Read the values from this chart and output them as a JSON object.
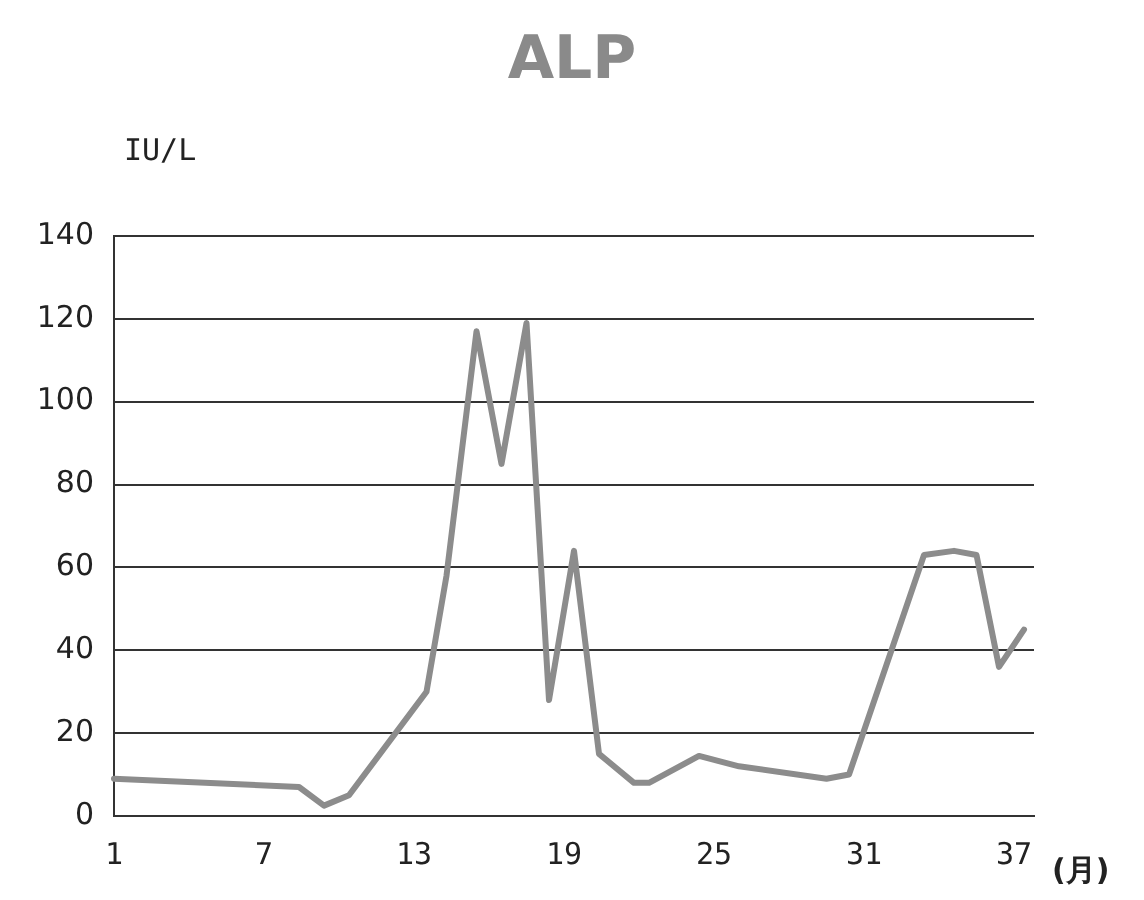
{
  "chart_data": {
    "type": "line",
    "title": "ALP",
    "ylabel": "IU/L",
    "xlabel": "(月)",
    "x": [
      1,
      8.4,
      9.4,
      10.4,
      13.5,
      14.3,
      15.5,
      16.5,
      17.5,
      18.4,
      19.4,
      20.4,
      21.8,
      22.4,
      24.4,
      26,
      29.5,
      30.4,
      33.4,
      34.6,
      35.5,
      36.4,
      37.4
    ],
    "series": [
      {
        "color": "#8c8c8c",
        "values": [
          9,
          7,
          2.5,
          5,
          30,
          58,
          117,
          85,
          119,
          28,
          64,
          15,
          8,
          8,
          14.5,
          12,
          9,
          10,
          63,
          64,
          63,
          36,
          45
        ]
      }
    ],
    "xlim": [
      1,
      37.8
    ],
    "xticks": [
      1,
      7,
      13,
      19,
      25,
      31,
      37
    ],
    "ylim": [
      0,
      140
    ],
    "yticks": [
      0,
      20,
      40,
      60,
      80,
      100,
      120,
      140
    ],
    "grid": "y",
    "legend": false,
    "marker": "none",
    "line_style": "solid"
  }
}
